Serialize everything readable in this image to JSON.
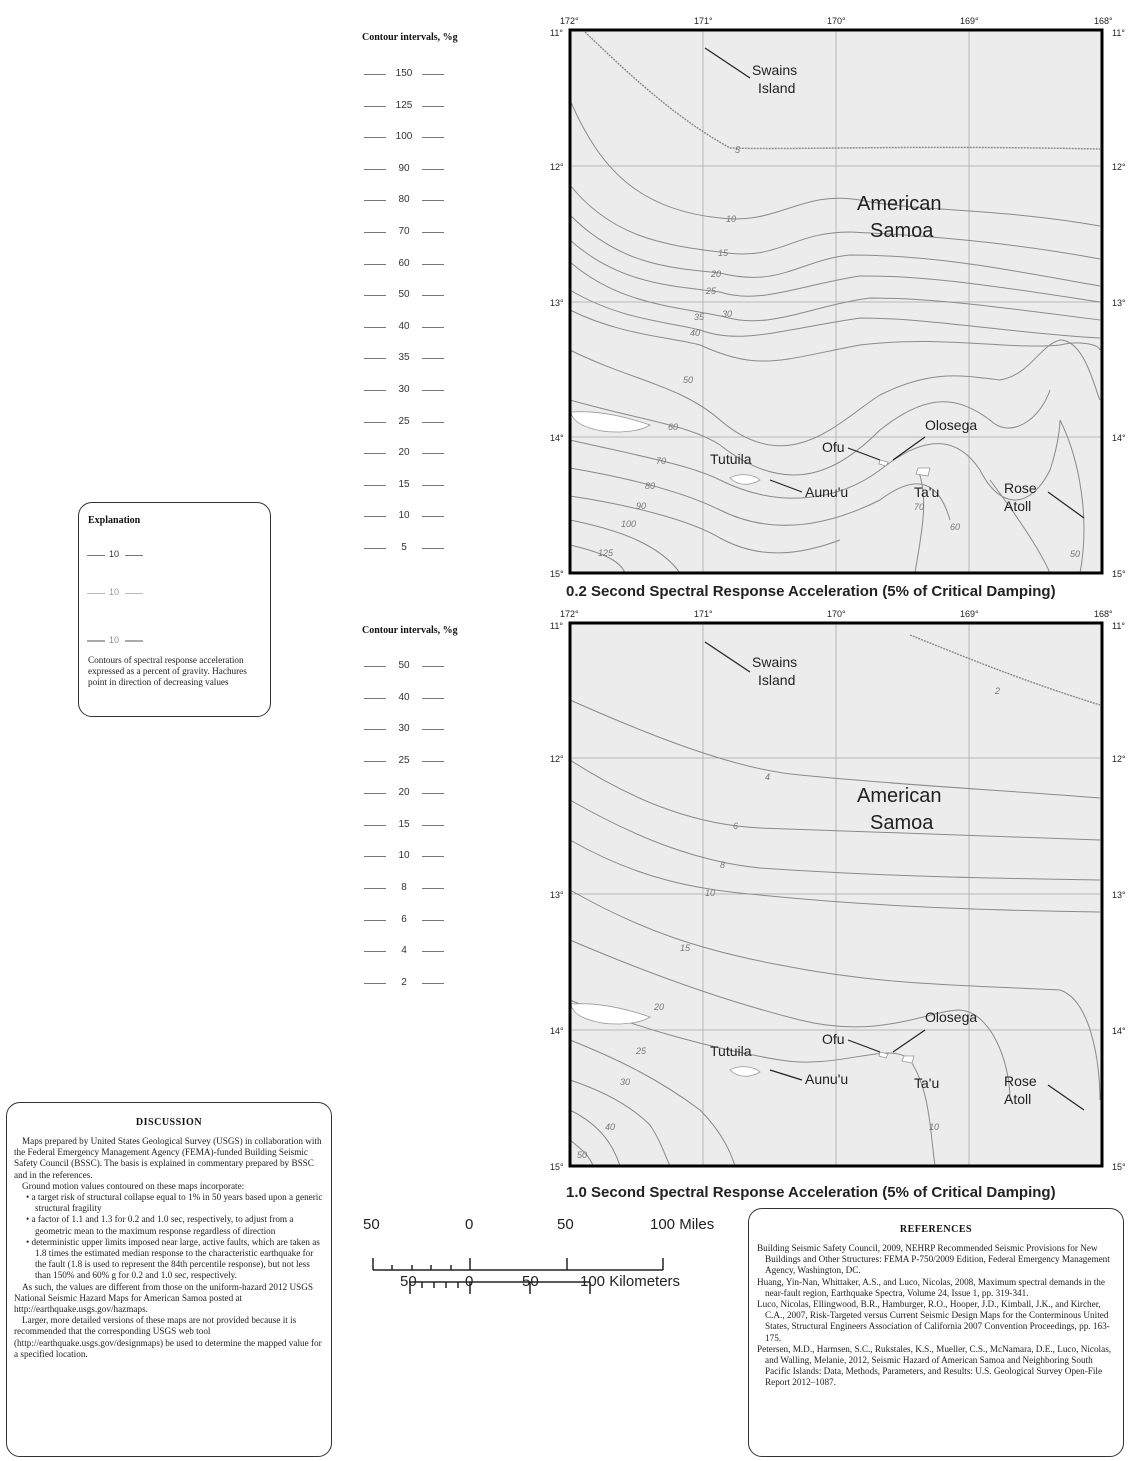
{
  "legend_top": {
    "title": "Contour intervals, %g",
    "values": [
      "150",
      "125",
      "100",
      "90",
      "80",
      "70",
      "60",
      "50",
      "40",
      "35",
      "30",
      "25",
      "20",
      "15",
      "10",
      "5"
    ]
  },
  "legend_bottom": {
    "title": "Contour intervals, %g",
    "values": [
      "50",
      "40",
      "30",
      "25",
      "20",
      "15",
      "10",
      "8",
      "6",
      "4",
      "2"
    ]
  },
  "explanation": {
    "title": "Explanation",
    "sample_label": "10",
    "text": "Contours of spectral response acceleration expressed as a percent of gravity.  Hachures point in direction of decreasing values"
  },
  "discussion": {
    "title": "DISCUSSION",
    "p1": "Maps prepared by United States Geological Survey (USGS) in collaboration with the Federal Emergency Management Agency (FEMA)-funded Building Seismic Safety Council (BSSC).  The basis is explained in commentary prepared by BSSC and in the references.",
    "p2": "Ground motion values contoured on these maps incorporate:",
    "b1": "• a target risk of structural collapse equal to 1% in 50 years based upon a generic structural fragility",
    "b2": "• a factor of 1.1 and 1.3 for 0.2 and 1.0 sec, respectively, to adjust from a geometric mean to the maximum response regardless of direction",
    "b3": "• deterministic upper limits imposed near large, active faults, which are taken as 1.8 times the estimated median response to the characteristic earthquake for the fault (1.8 is used to represent  the 84th percentile response), but not less than 150% and 60% g for 0.2 and 1.0 sec, respectively.",
    "p3": "As such, the values are different from those on the uniform-hazard 2012 USGS National Seismic Hazard Maps for American Samoa posted at http://earthquake.usgs.gov/hazmaps.",
    "p4": "Larger, more detailed versions of these maps are not provided because it is recommended that the corresponding USGS web tool (http://earthquake.usgs.gov/designmaps) be used to determine the mapped value for a specified location."
  },
  "references": {
    "title": "REFERENCES",
    "items": [
      "Building Seismic Safety Council, 2009, NEHRP Recommended Seismic Provisions for New Buildings and Other Structures: FEMA  P-750/2009 Edition, Federal Emergency Management Agency, Washington, DC.",
      "Huang, Yin-Nan, Whittaker, A.S., and Luco, Nicolas, 2008, Maximum spectral demands in the near-fault region, Earthquake Spectra, Volume 24, Issue 1, pp. 319-341.",
      "Luco, Nicolas, Ellingwood, B.R., Hamburger, R.O., Hooper, J.D., Kimball, J.K., and Kircher, C.A., 2007, Risk-Targeted versus Current Seismic Design Maps for the Conterminous United States, Structural Engineers Association of California 2007 Convention Proceedings, pp. 163-175.",
      "Petersen, M.D., Harmsen, S.C., Rukstales, K.S., Mueller, C.S., McNamara, D.E., Luco, Nicolas, and Walling, Melanie, 2012, Seismic Hazard of American Samoa and Neighboring South Pacific Islands: Data, Methods, Parameters, and Results: U.S. Geological Survey Open-File Report 2012–1087."
    ]
  },
  "scale": {
    "miles": [
      "50",
      "0",
      "50",
      "100 Miles"
    ],
    "km": [
      "50",
      "0",
      "50",
      "100 Kilometers"
    ]
  },
  "map_common": {
    "lon_labels": [
      "172°",
      "171°",
      "170°",
      "169°",
      "168°"
    ],
    "lat_labels": [
      "11°",
      "12°",
      "13°",
      "14°",
      "15°"
    ],
    "region": "American Samoa",
    "region_line1": "American",
    "region_line2": "Samoa",
    "places": {
      "swains1": "Swains",
      "swains2": "Island",
      "tutuila": "Tutuila",
      "aunuu": "Aunu'u",
      "ofu": "Ofu",
      "olosega": "Olosega",
      "tau": "Ta'u",
      "rose1": "Rose",
      "rose2": "Atoll"
    },
    "colors": {
      "land_bg": "#ececec",
      "contour": "#8a8a8a",
      "frame": "#000000",
      "grid": "#bbbbbb"
    }
  },
  "map_top": {
    "title": "0.2 Second Spectral Response Acceleration (5% of Critical Damping)",
    "contour_labels": [
      "5",
      "10",
      "15",
      "20",
      "25",
      "30",
      "35",
      "40",
      "50",
      "60",
      "70",
      "80",
      "90",
      "100",
      "125",
      "70",
      "60",
      "50"
    ]
  },
  "map_bottom": {
    "title": "1.0 Second Spectral Response Acceleration (5% of Critical Damping)",
    "contour_labels": [
      "2",
      "4",
      "6",
      "8",
      "10",
      "15",
      "20",
      "25",
      "30",
      "40",
      "50",
      "10"
    ]
  }
}
